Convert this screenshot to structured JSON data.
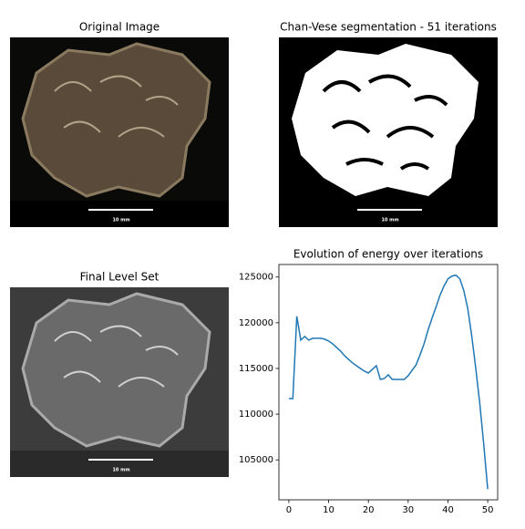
{
  "panels": [
    {
      "title": "Original Image",
      "scale_label": "10 mm"
    },
    {
      "title": "Chan-Vese segmentation - 51 iterations",
      "scale_label": "10 mm"
    },
    {
      "title": "Final Level Set",
      "scale_label": "10 mm"
    }
  ],
  "chart_data": {
    "type": "line",
    "title": "Evolution of energy over iterations",
    "x": [
      0,
      1,
      2,
      3,
      4,
      5,
      6,
      7,
      8,
      9,
      10,
      11,
      12,
      13,
      14,
      15,
      16,
      17,
      18,
      19,
      20,
      21,
      22,
      23,
      24,
      25,
      26,
      27,
      28,
      29,
      30,
      31,
      32,
      33,
      34,
      35,
      36,
      37,
      38,
      39,
      40,
      41,
      42,
      43,
      44,
      45,
      46,
      47,
      48,
      49,
      50
    ],
    "series": [
      {
        "color": "#1f77b4",
        "values": [
          111700,
          111700,
          120700,
          118100,
          118500,
          118100,
          118300,
          118300,
          118300,
          118200,
          118000,
          117700,
          117300,
          116900,
          116400,
          116000,
          115600,
          115300,
          115000,
          114700,
          114500,
          114900,
          115300,
          113800,
          113900,
          114300,
          113800,
          113800,
          113800,
          113800,
          114200,
          114800,
          115400,
          116500,
          117700,
          119200,
          120500,
          121700,
          123000,
          124000,
          124800,
          125100,
          125200,
          124800,
          123500,
          121500,
          118500,
          115000,
          111200,
          106700,
          101800
        ]
      }
    ],
    "xlim": [
      -2.5,
      52.5
    ],
    "xticks": [
      0,
      10,
      20,
      30,
      40,
      50
    ],
    "ylim": [
      100630,
      126370
    ],
    "yticks": [
      105000,
      110000,
      115000,
      120000,
      125000
    ]
  }
}
